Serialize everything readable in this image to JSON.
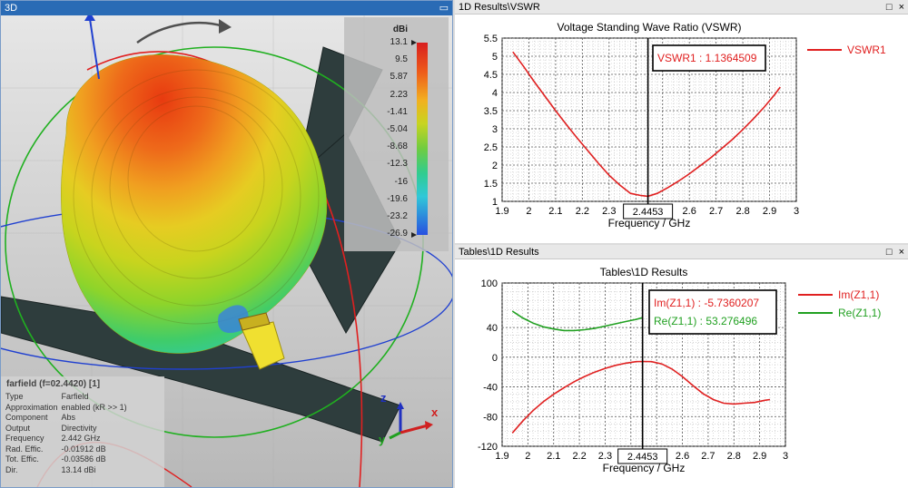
{
  "panel3d": {
    "title": "3D",
    "colorbar": {
      "unit": "dBi",
      "labels": [
        "13.1",
        "9.5",
        "5.87",
        "2.23",
        "-1.41",
        "-5.04",
        "-8.68",
        "-12.3",
        "-16",
        "-19.6",
        "-23.2",
        "-26.9"
      ]
    },
    "info": {
      "header": "farfield (f=02.4420) [1]",
      "rows": [
        {
          "k": "Type",
          "v": "Farfield"
        },
        {
          "k": "Approximation",
          "v": "enabled (kR >> 1)"
        },
        {
          "k": "Component",
          "v": "Abs"
        },
        {
          "k": "Output",
          "v": "Directivity"
        },
        {
          "k": "Frequency",
          "v": "2.442 GHz"
        },
        {
          "k": "Rad. Effic.",
          "v": "-0.01912 dB"
        },
        {
          "k": "Tot. Effic.",
          "v": "-0.03586 dB"
        },
        {
          "k": "Dir.",
          "v": "13.14 dBi"
        }
      ]
    },
    "axes": {
      "x": "x",
      "y": "y",
      "z": "z"
    },
    "colors": {
      "x": "#d02020",
      "y": "#20a020",
      "z": "#2030c0"
    }
  },
  "vswr_panel": {
    "title": "1D Results\\VSWR",
    "win_btns": {
      "max": "□",
      "close": "×"
    }
  },
  "z_panel": {
    "title": "Tables\\1D Results",
    "win_btns": {
      "max": "□",
      "close": "×"
    }
  },
  "chart_data": [
    {
      "type": "line",
      "title": "Voltage Standing Wave Ratio (VSWR)",
      "xlabel": "Frequency / GHz",
      "ylabel": "",
      "xlim": [
        1.9,
        3
      ],
      "ylim": [
        1,
        5.5
      ],
      "xticks": [
        1.9,
        2.0,
        2.1,
        2.2,
        2.3,
        2.4,
        2.5,
        2.6,
        2.7,
        2.8,
        2.9,
        3.0
      ],
      "xtick_labels": [
        "1.9",
        "2",
        "2.1",
        "2.2",
        "2.3",
        "",
        "2.5",
        "2.6",
        "2.7",
        "2.8",
        "2.9",
        "3"
      ],
      "yticks": [
        1,
        1.5,
        2,
        2.5,
        3,
        3.5,
        4,
        4.5,
        5,
        5.5
      ],
      "ytick_labels": [
        "1",
        "1.5",
        "2",
        "2.5",
        "3",
        "3.5",
        "4",
        "4.5",
        "5",
        "5.5"
      ],
      "marker_x": 2.4453,
      "marker_label": "2.4453",
      "annotations": [
        "VSWR1 : 1.1364509"
      ],
      "series": [
        {
          "name": "VSWR1",
          "color": "#e02020",
          "x": [
            1.94,
            1.98,
            2.02,
            2.06,
            2.1,
            2.14,
            2.18,
            2.22,
            2.26,
            2.3,
            2.34,
            2.38,
            2.42,
            2.4453,
            2.48,
            2.52,
            2.56,
            2.6,
            2.64,
            2.68,
            2.72,
            2.76,
            2.8,
            2.84,
            2.88,
            2.92,
            2.94
          ],
          "y": [
            5.12,
            4.72,
            4.3,
            3.9,
            3.5,
            3.12,
            2.75,
            2.4,
            2.05,
            1.72,
            1.45,
            1.22,
            1.16,
            1.14,
            1.22,
            1.38,
            1.56,
            1.76,
            1.98,
            2.2,
            2.45,
            2.7,
            2.98,
            3.28,
            3.6,
            3.95,
            4.15
          ]
        }
      ]
    },
    {
      "type": "line",
      "title": "Tables\\1D Results",
      "xlabel": "Frequency / GHz",
      "ylabel": "",
      "xlim": [
        1.9,
        3
      ],
      "ylim": [
        -120,
        100
      ],
      "xticks": [
        1.9,
        2.0,
        2.1,
        2.2,
        2.3,
        2.4,
        2.5,
        2.6,
        2.7,
        2.8,
        2.9,
        3.0
      ],
      "xtick_labels": [
        "1.9",
        "2",
        "2.1",
        "2.2",
        "2.3",
        "",
        "2.5",
        "2.6",
        "2.7",
        "2.8",
        "2.9",
        "3"
      ],
      "yticks": [
        -120,
        -80,
        -40,
        0,
        40,
        100
      ],
      "ytick_labels": [
        "-120",
        "-80",
        "-40",
        "0",
        "40",
        "100"
      ],
      "marker_x": 2.4453,
      "marker_label": "2.4453",
      "annotations": [
        "Im(Z1,1) : -5.7360207",
        "Re(Z1,1) : 53.276496"
      ],
      "series": [
        {
          "name": "Im(Z1,1)",
          "color": "#e02020",
          "x": [
            1.94,
            1.98,
            2.02,
            2.06,
            2.1,
            2.14,
            2.18,
            2.22,
            2.26,
            2.3,
            2.34,
            2.38,
            2.42,
            2.4453,
            2.48,
            2.52,
            2.56,
            2.6,
            2.64,
            2.68,
            2.72,
            2.76,
            2.8,
            2.84,
            2.88,
            2.92,
            2.94
          ],
          "y": [
            -102,
            -86,
            -72,
            -60,
            -50,
            -41,
            -33,
            -26,
            -20,
            -15,
            -11,
            -8,
            -6,
            -5.7,
            -6,
            -9,
            -16,
            -26,
            -38,
            -49,
            -57,
            -62,
            -63,
            -62,
            -61,
            -58,
            -57
          ]
        },
        {
          "name": "Re(Z1,1)",
          "color": "#20a020",
          "x": [
            1.94,
            1.98,
            2.02,
            2.06,
            2.1,
            2.14,
            2.18,
            2.22,
            2.26,
            2.3,
            2.34,
            2.38,
            2.42,
            2.4453
          ],
          "y": [
            62,
            53,
            46,
            41,
            38,
            36,
            36,
            37,
            39,
            42,
            45,
            48,
            51,
            53.3
          ]
        }
      ]
    }
  ]
}
